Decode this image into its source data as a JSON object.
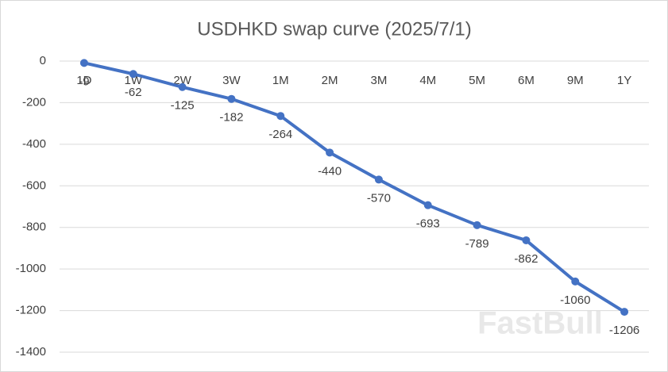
{
  "chart_data": {
    "type": "line",
    "title": "USDHKD swap curve (2025/7/1)",
    "categories": [
      "1D",
      "1W",
      "2W",
      "3W",
      "1M",
      "2M",
      "3M",
      "4M",
      "5M",
      "6M",
      "9M",
      "1Y"
    ],
    "values": [
      -9,
      -62,
      -125,
      -182,
      -264,
      -440,
      -570,
      -693,
      -789,
      -862,
      -1060,
      -1206
    ],
    "color": "#4472c4",
    "ylim": [
      -1400,
      0
    ],
    "yticks": [
      0,
      -200,
      -400,
      -600,
      -800,
      -1000,
      -1200,
      -1400
    ],
    "grid": true,
    "watermark": "FastBull"
  }
}
